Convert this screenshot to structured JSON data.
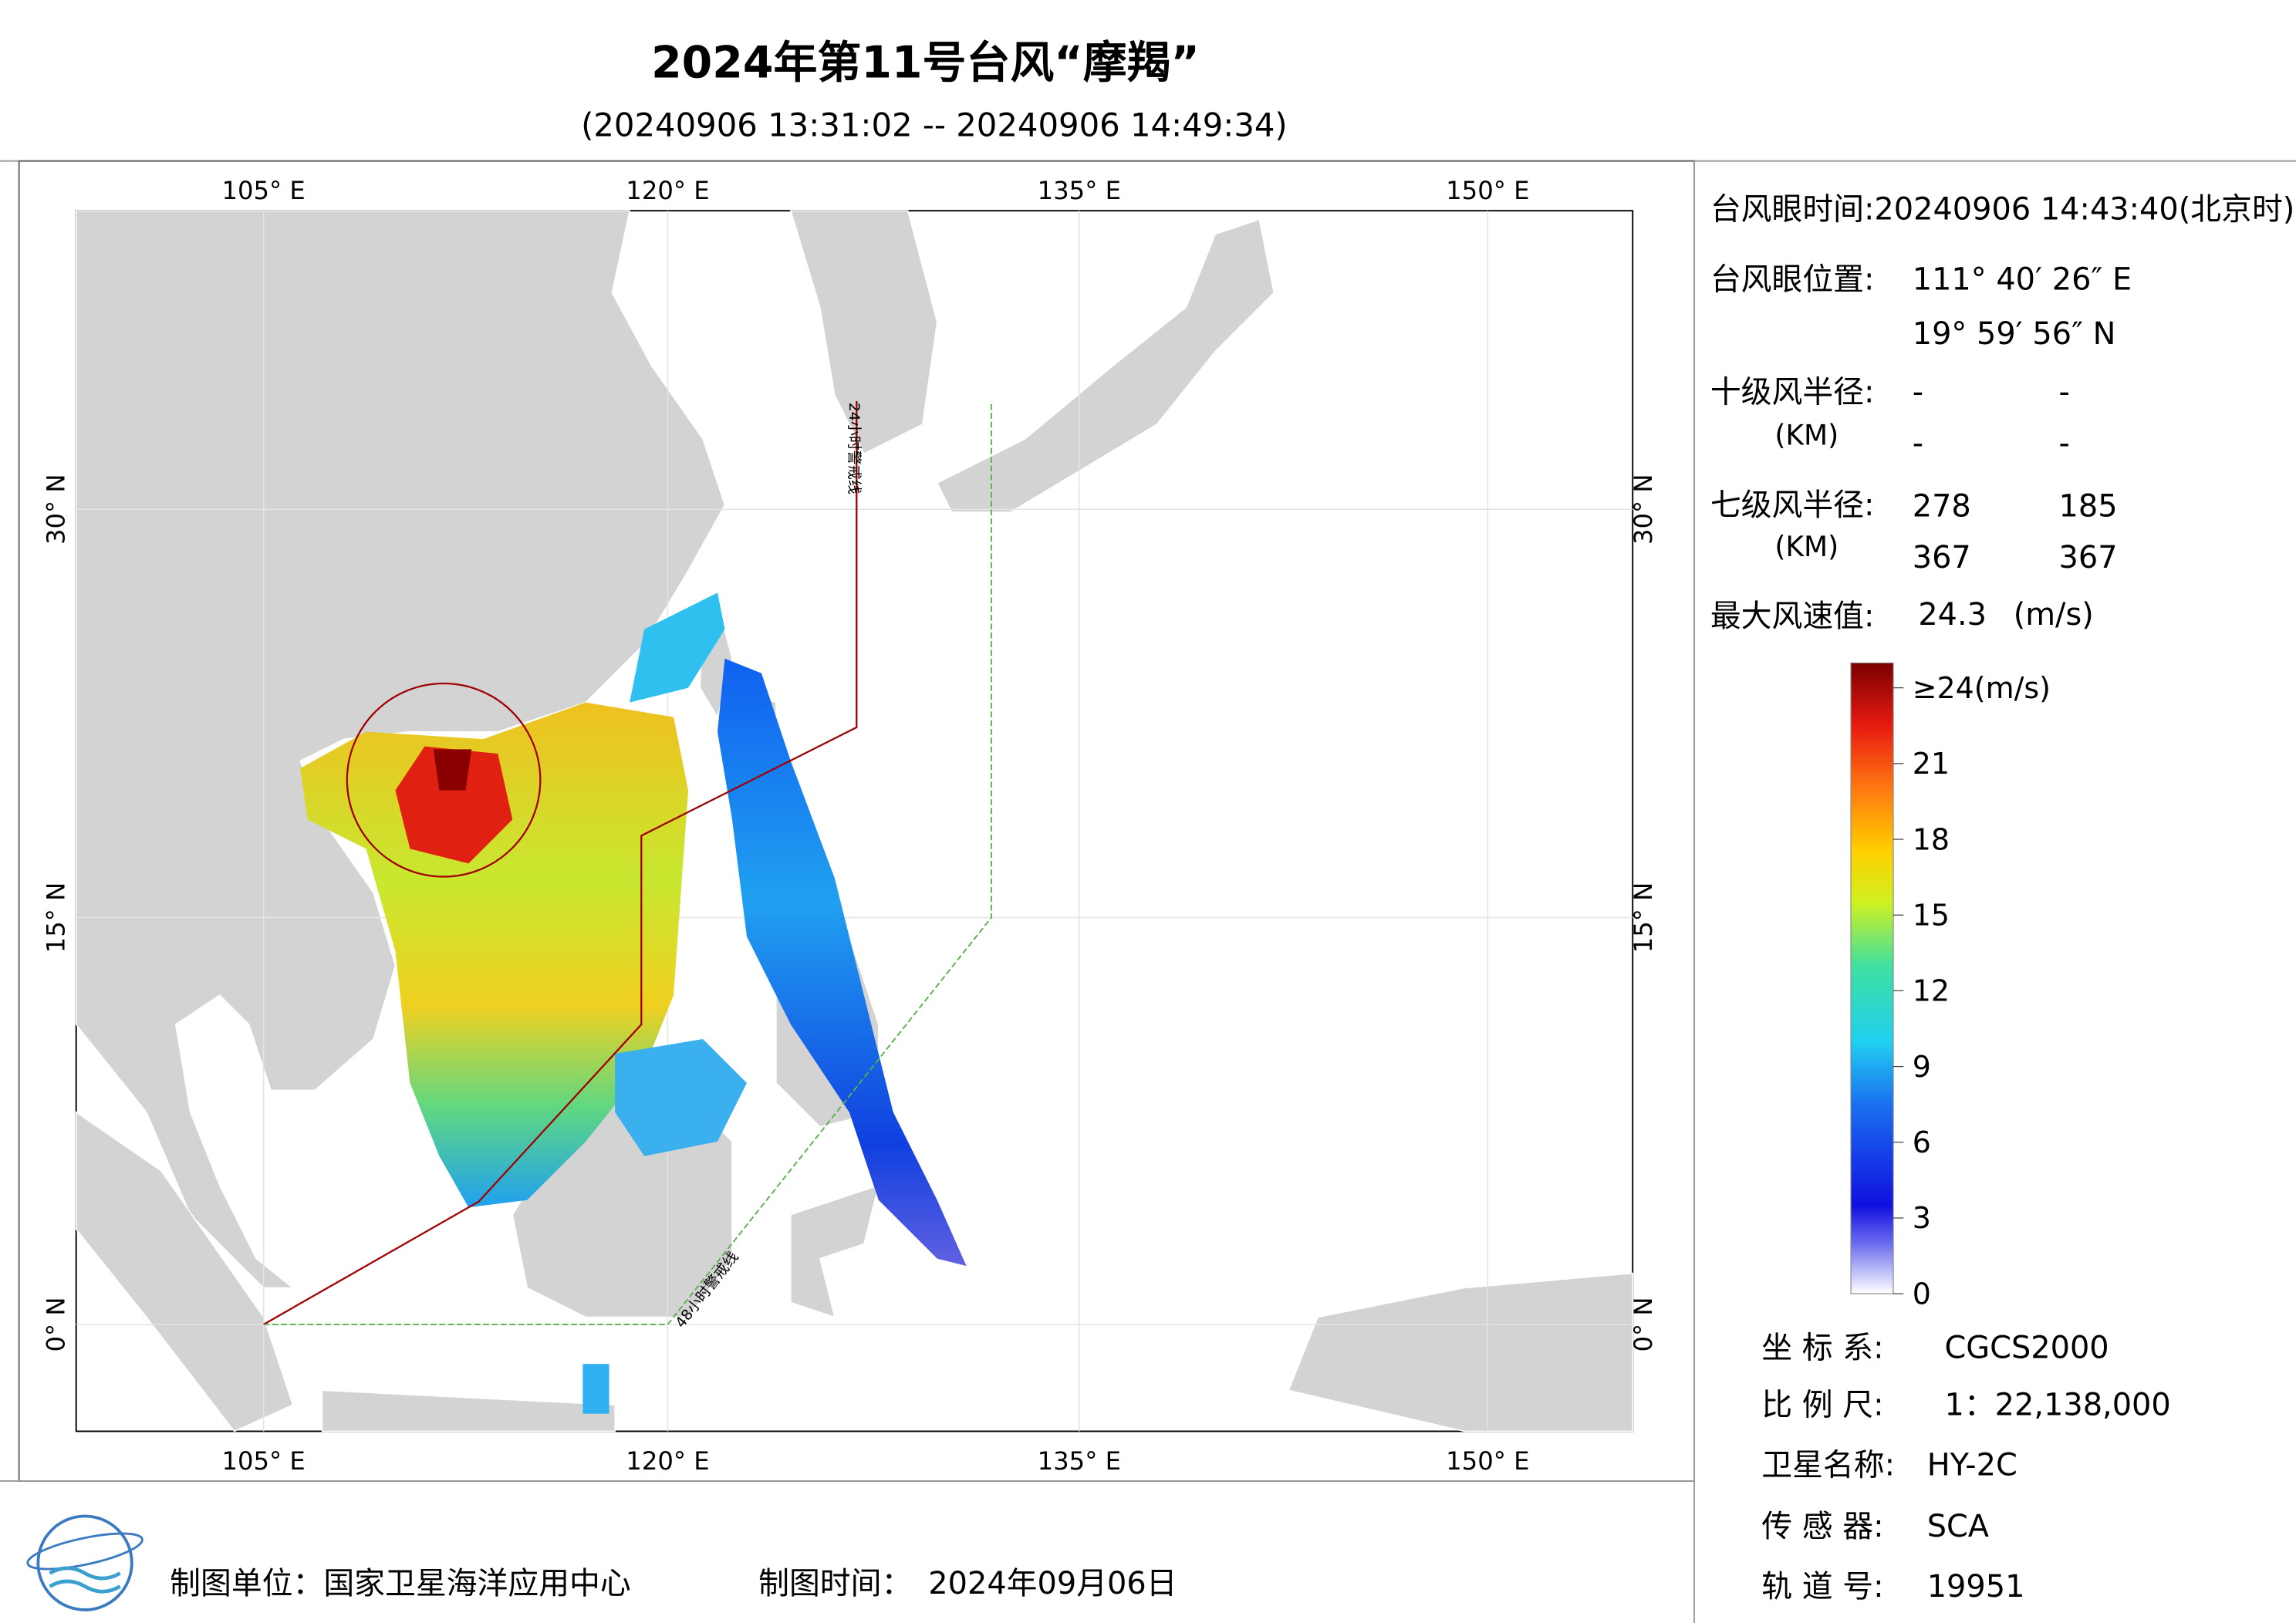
{
  "header": {
    "title": "2024年第11号台风“摩羯”",
    "subtitle": "(20240906 13:31:02 -- 20240906 14:49:34)"
  },
  "map": {
    "lon_labels": [
      "105° E",
      "120° E",
      "135° E",
      "150° E"
    ],
    "lat_labels": [
      "30° N",
      "15° N",
      "0° N"
    ],
    "warning_24h": "24小时警戒线",
    "warning_48h": "48小时警戒线"
  },
  "info": {
    "eye_time": "台风眼时间:20240906 14:43:40(北京时)",
    "eye_position_label": "台风眼位置:",
    "eye_lon": "111° 40′ 26″ E",
    "eye_lat": "19° 59′ 56″ N",
    "r10_label": "十级风半径:",
    "r10_unit": "(KM)",
    "r10_values": [
      "-",
      "-",
      "-",
      "-"
    ],
    "r7_label": "七级风半径:",
    "r7_unit": "(KM)",
    "r7_values": [
      278,
      185,
      367,
      367
    ],
    "max_wind_label": "最大风速值:",
    "max_wind": 24.3,
    "max_wind_unit": "(m/s)"
  },
  "colorbar": {
    "ticks": [
      {
        "value": 24,
        "label": "≥24(m/s)"
      },
      21,
      18,
      15,
      12,
      9,
      6,
      3,
      0
    ]
  },
  "meta": {
    "crs_label": "坐 标 系:",
    "crs": "CGCS2000",
    "scale_label": "比 例 尺:",
    "scale": "1：22,138,000",
    "satellite_label": "卫星名称:",
    "satellite": "HY-2C",
    "sensor_label": "传 感 器:",
    "sensor": "SCA",
    "orbit_label": "轨 道 号:",
    "orbit": "19951"
  },
  "footer": {
    "producer": "制图单位：国家卫星海洋应用中心",
    "date_label": "制图时间：",
    "date": "2024年09月06日"
  }
}
